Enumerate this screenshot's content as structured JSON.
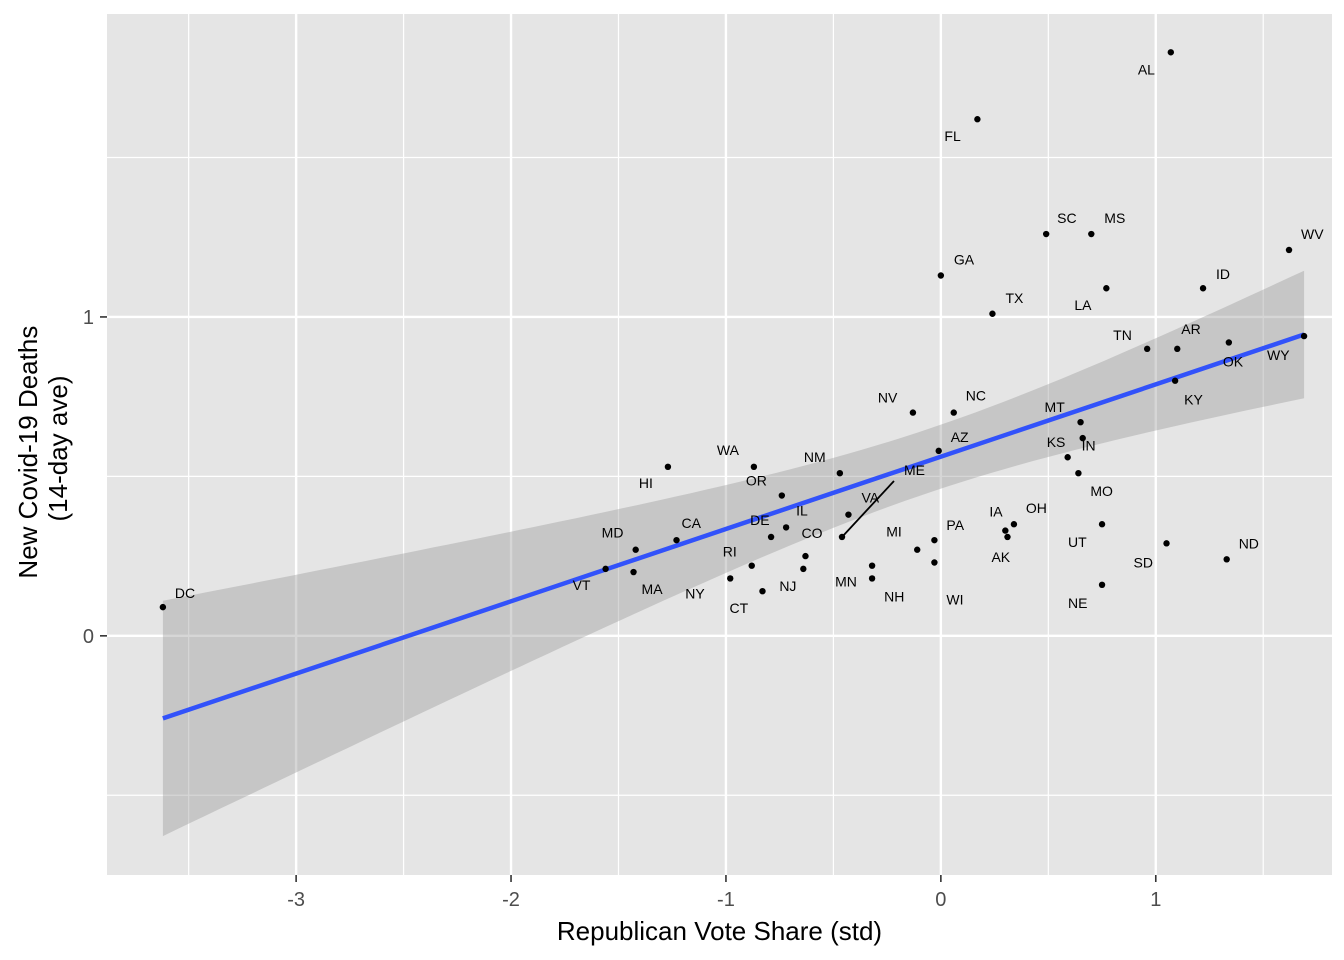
{
  "chart_data": {
    "type": "scatter",
    "title": "",
    "xlabel": "Republican Vote Share (std)",
    "ylabel_lines": [
      "New Covid-19 Deaths",
      "(14-day ave)"
    ],
    "xlim": [
      -3.88,
      1.82
    ],
    "ylim": [
      -0.75,
      1.95
    ],
    "x_ticks": [
      -3,
      -2,
      -1,
      0,
      1
    ],
    "x_tick_labels": [
      "-3",
      "-2",
      "-1",
      "0",
      "1"
    ],
    "y_ticks": [
      0,
      1
    ],
    "y_tick_labels": [
      "0",
      "1"
    ],
    "grid": true,
    "trend": {
      "method": "linear",
      "x_range": [
        -3.62,
        1.69
      ],
      "y_range": [
        -0.259,
        0.945
      ],
      "ci_upper_at_ends": [
        0.11,
        1.145
      ],
      "ci_lower_at_ends": [
        -0.628,
        0.758
      ],
      "x_min_width": -0.05
    },
    "colors": {
      "panel": "#e5e5e5",
      "grid": "#ffffff",
      "line": "#3252fa",
      "ribbon": "#999999",
      "point": "#000000"
    },
    "points": [
      {
        "state": "AL",
        "x": 1.07,
        "y": 1.83
      },
      {
        "state": "FL",
        "x": 0.17,
        "y": 1.62
      },
      {
        "state": "SC",
        "x": 0.49,
        "y": 1.26
      },
      {
        "state": "MS",
        "x": 0.7,
        "y": 1.26
      },
      {
        "state": "WV",
        "x": 1.62,
        "y": 1.21
      },
      {
        "state": "GA",
        "x": 0.0,
        "y": 1.13
      },
      {
        "state": "ID",
        "x": 1.22,
        "y": 1.09
      },
      {
        "state": "LA",
        "x": 0.77,
        "y": 1.09
      },
      {
        "state": "TX",
        "x": 0.24,
        "y": 1.01
      },
      {
        "state": "TN",
        "x": 0.96,
        "y": 0.9
      },
      {
        "state": "AR",
        "x": 1.1,
        "y": 0.9
      },
      {
        "state": "OK",
        "x": 1.34,
        "y": 0.92
      },
      {
        "state": "WY",
        "x": 1.69,
        "y": 0.94
      },
      {
        "state": "KY",
        "x": 1.09,
        "y": 0.8
      },
      {
        "state": "NV",
        "x": -0.13,
        "y": 0.7
      },
      {
        "state": "NC",
        "x": 0.06,
        "y": 0.7
      },
      {
        "state": "MT",
        "x": 0.65,
        "y": 0.67
      },
      {
        "state": "KS",
        "x": 0.66,
        "y": 0.62
      },
      {
        "state": "AZ",
        "x": -0.01,
        "y": 0.58
      },
      {
        "state": "IN",
        "x": 0.59,
        "y": 0.56
      },
      {
        "state": "MO",
        "x": 0.64,
        "y": 0.51
      },
      {
        "state": "WA",
        "x": -0.87,
        "y": 0.53
      },
      {
        "state": "HI",
        "x": -1.27,
        "y": 0.53
      },
      {
        "state": "NM",
        "x": -0.47,
        "y": 0.51
      },
      {
        "state": "OR",
        "x": -0.74,
        "y": 0.44
      },
      {
        "state": "VA",
        "x": -0.43,
        "y": 0.38
      },
      {
        "state": "ME",
        "x": -0.46,
        "y": 0.31
      },
      {
        "state": "IL",
        "x": -0.72,
        "y": 0.34
      },
      {
        "state": "DE",
        "x": -0.79,
        "y": 0.31
      },
      {
        "state": "CA",
        "x": -1.23,
        "y": 0.3
      },
      {
        "state": "MD",
        "x": -1.42,
        "y": 0.27
      },
      {
        "state": "CO",
        "x": -0.63,
        "y": 0.25
      },
      {
        "state": "IA",
        "x": 0.3,
        "y": 0.33
      },
      {
        "state": "OH",
        "x": 0.34,
        "y": 0.35
      },
      {
        "state": "AK",
        "x": 0.31,
        "y": 0.31
      },
      {
        "state": "UT",
        "x": 0.75,
        "y": 0.35
      },
      {
        "state": "PA",
        "x": -0.03,
        "y": 0.3
      },
      {
        "state": "MI",
        "x": -0.11,
        "y": 0.27
      },
      {
        "state": "WI",
        "x": -0.03,
        "y": 0.23
      },
      {
        "state": "MN",
        "x": -0.32,
        "y": 0.22
      },
      {
        "state": "NH",
        "x": -0.32,
        "y": 0.18
      },
      {
        "state": "RI",
        "x": -0.88,
        "y": 0.22
      },
      {
        "state": "NJ",
        "x": -0.64,
        "y": 0.21
      },
      {
        "state": "NY",
        "x": -0.98,
        "y": 0.18
      },
      {
        "state": "CT",
        "x": -0.83,
        "y": 0.14
      },
      {
        "state": "VT",
        "x": -1.56,
        "y": 0.21
      },
      {
        "state": "MA",
        "x": -1.43,
        "y": 0.2
      },
      {
        "state": "DC",
        "x": -3.62,
        "y": 0.09
      },
      {
        "state": "SD",
        "x": 1.05,
        "y": 0.29
      },
      {
        "state": "ND",
        "x": 1.33,
        "y": 0.24
      },
      {
        "state": "NE",
        "x": 0.75,
        "y": 0.16
      }
    ]
  }
}
